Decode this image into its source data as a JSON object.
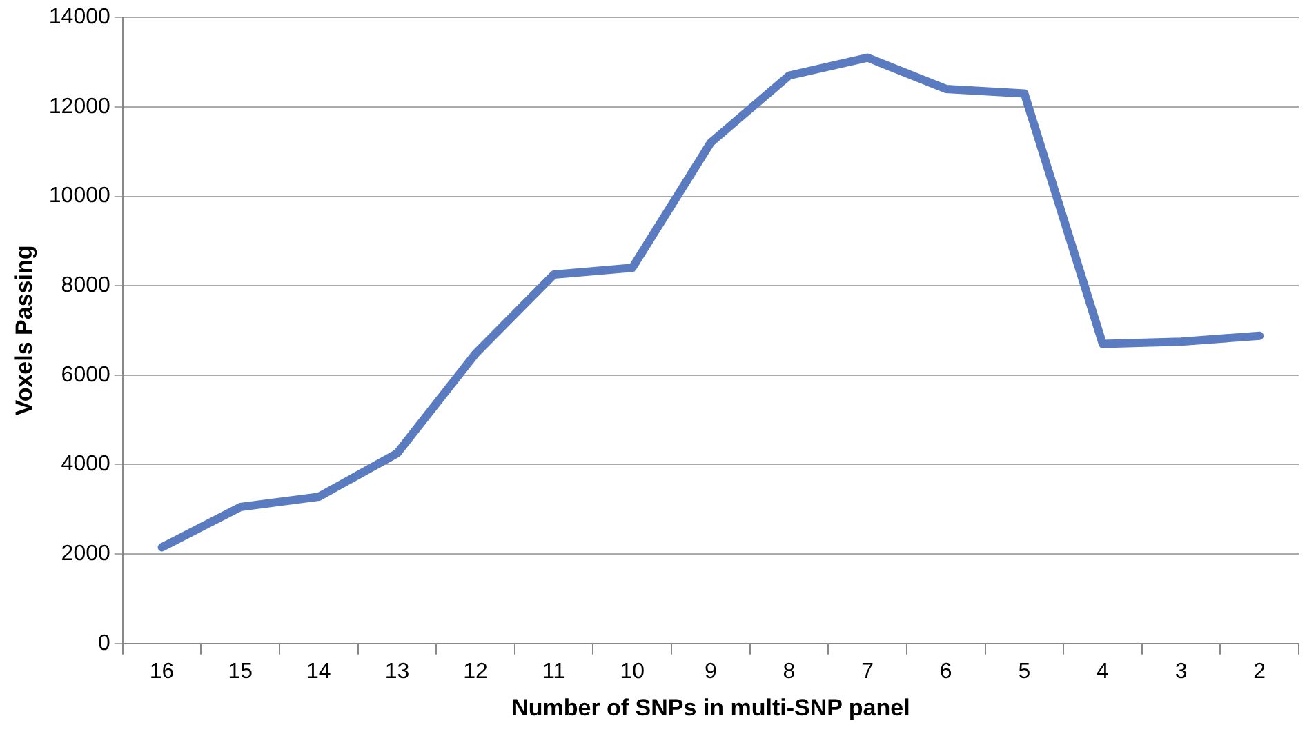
{
  "chart_data": {
    "type": "line",
    "xlabel": "Number of SNPs in multi-SNP panel",
    "ylabel": "Voxels Passing",
    "categories": [
      "16",
      "15",
      "14",
      "13",
      "12",
      "11",
      "10",
      "9",
      "8",
      "7",
      "6",
      "5",
      "4",
      "3",
      "2"
    ],
    "series": [
      {
        "color": "#5b7bc0",
        "values": [
          2150,
          3050,
          3280,
          4250,
          6480,
          8250,
          8400,
          11200,
          12700,
          13100,
          12400,
          12300,
          6700,
          6750,
          6880
        ]
      }
    ],
    "ylim": [
      0,
      14000
    ],
    "yticks": [
      0,
      2000,
      4000,
      6000,
      8000,
      10000,
      12000,
      14000
    ],
    "grid": "y",
    "legend": false,
    "marker": "none",
    "line_style": "solid"
  }
}
